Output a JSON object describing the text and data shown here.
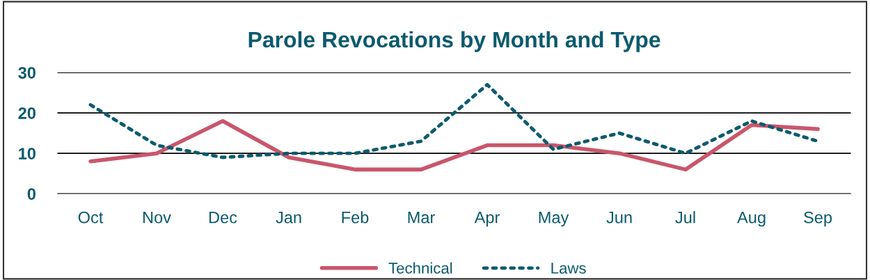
{
  "chart_data": {
    "type": "line",
    "title": "Parole Revocations by Month and Type",
    "categories": [
      "Oct",
      "Nov",
      "Dec",
      "Jan",
      "Feb",
      "Mar",
      "Apr",
      "May",
      "Jun",
      "Jul",
      "Aug",
      "Sep"
    ],
    "series": [
      {
        "name": "Technical",
        "color": "#c9566b",
        "line_style": "solid",
        "values": [
          8,
          10,
          18,
          9,
          6,
          6,
          12,
          12,
          10,
          6,
          17,
          16
        ]
      },
      {
        "name": "Laws",
        "color": "#0b5a6e",
        "line_style": "dotted",
        "values": [
          22,
          12,
          9,
          10,
          10,
          13,
          27,
          11,
          15,
          10,
          18,
          13
        ]
      }
    ],
    "ylim": [
      0,
      30
    ],
    "yticks": [
      0,
      10,
      20,
      30
    ],
    "grid": "y",
    "legend": "bottom",
    "marker": "none"
  }
}
